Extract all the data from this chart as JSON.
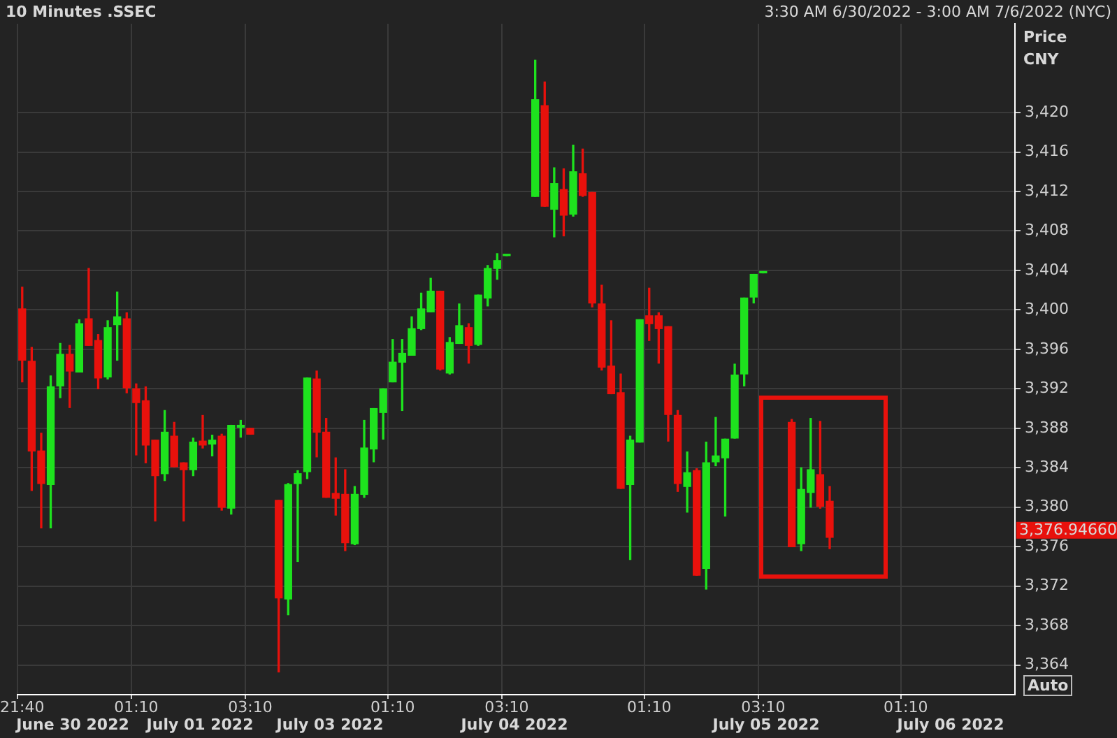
{
  "chart_data": {
    "type": "candlestick",
    "title": "10 Minutes .SSEC",
    "subtitle": "3:30 AM 6/30/2022 - 3:00 AM 7/6/2022 (NYC)",
    "ylabel": "Price CNY",
    "categories": [
      "21:40",
      null,
      null,
      null,
      null,
      null,
      null,
      null,
      null,
      null,
      null,
      null,
      "01:10",
      null,
      null,
      null,
      null,
      null,
      null,
      null,
      null,
      null,
      null,
      null,
      "03:10",
      null,
      null,
      null,
      null,
      null,
      null,
      null,
      null,
      null,
      null,
      null,
      null,
      null,
      null,
      "01:10",
      null,
      null,
      null,
      null,
      null,
      null,
      null,
      null,
      null,
      null,
      null,
      "03:10",
      null,
      null,
      null,
      null,
      null,
      null,
      null,
      null,
      null,
      null,
      null,
      null,
      null,
      null,
      "01:10",
      null,
      null,
      null,
      null,
      null,
      null,
      null,
      null,
      null,
      null,
      null,
      "03:10",
      null,
      null,
      null,
      null,
      null,
      null,
      null,
      null,
      null,
      null,
      null,
      null,
      null,
      null,
      "01:10",
      null,
      null,
      null,
      null,
      null,
      null,
      null,
      null,
      null,
      null,
      null
    ],
    "ohlc": [
      [
        3400.1,
        3402.3,
        3392.7,
        3394.9
      ],
      [
        3394.8,
        3396.2,
        3381.7,
        3385.7
      ],
      [
        3385.7,
        3387.5,
        3377.9,
        3382.4
      ],
      [
        3382.3,
        3393.3,
        3377.9,
        3392.2
      ],
      [
        3392.3,
        3396.6,
        3391.1,
        3395.5
      ],
      [
        3395.5,
        3396.4,
        3390.1,
        3393.8
      ],
      [
        3393.7,
        3399.0,
        3393.7,
        3398.6
      ],
      [
        3399.1,
        3404.2,
        3396.4,
        3396.4
      ],
      [
        3396.9,
        3397.5,
        3392.0,
        3393.1
      ],
      [
        3393.2,
        3398.9,
        3393.0,
        3398.2
      ],
      [
        3398.5,
        3401.8,
        3394.9,
        3399.3
      ],
      [
        3399.1,
        3399.7,
        3391.6,
        3392.1
      ],
      [
        3392.0,
        3392.5,
        3385.3,
        3390.6
      ],
      [
        3390.8,
        3392.2,
        3384.5,
        3386.3
      ],
      [
        3386.8,
        3386.8,
        3378.6,
        3383.2
      ],
      [
        3383.4,
        3389.8,
        3382.7,
        3387.6
      ],
      [
        3387.2,
        3388.6,
        3384.1,
        3384.1
      ],
      [
        3384.5,
        3384.5,
        3378.6,
        3383.8
      ],
      [
        3383.8,
        3387.0,
        3383.2,
        3386.6
      ],
      [
        3386.7,
        3389.3,
        3386.0,
        3386.3
      ],
      [
        3386.4,
        3387.3,
        3385.2,
        3386.8
      ],
      [
        3387.2,
        3387.4,
        3379.7,
        3380.0
      ],
      [
        3379.9,
        3388.3,
        3379.3,
        3388.3
      ],
      [
        3388.1,
        3388.8,
        3387.1,
        3388.3
      ],
      [
        3388.0,
        3388.0,
        3387.4,
        3387.4
      ],
      null,
      null,
      [
        3380.7,
        3380.7,
        3363.3,
        3370.8
      ],
      [
        3370.7,
        3382.4,
        3369.1,
        3382.3
      ],
      [
        3382.4,
        3383.7,
        3374.5,
        3383.4
      ],
      [
        3383.6,
        3393.1,
        3382.9,
        3393.1
      ],
      [
        3393.0,
        3393.8,
        3385.1,
        3387.6
      ],
      [
        3387.6,
        3389.0,
        3381.0,
        3381.0
      ],
      [
        3381.4,
        3385.0,
        3379.2,
        3380.9
      ],
      [
        3381.3,
        3383.8,
        3375.6,
        3376.4
      ],
      [
        3376.3,
        3382.1,
        3376.2,
        3381.3
      ],
      [
        3381.3,
        3388.8,
        3381.0,
        3386.0
      ],
      [
        3385.9,
        3390.0,
        3384.6,
        3390.0
      ],
      [
        3389.6,
        3392.0,
        3386.9,
        3392.0
      ],
      [
        3392.7,
        3397.0,
        3392.7,
        3394.7
      ],
      [
        3394.7,
        3397.0,
        3389.8,
        3395.6
      ],
      [
        3395.4,
        3399.3,
        3395.4,
        3398.1
      ],
      [
        3398.1,
        3401.7,
        3398.0,
        3400.1
      ],
      [
        3399.8,
        3403.2,
        3399.8,
        3401.9
      ],
      [
        3401.9,
        3401.9,
        3393.9,
        3394.0
      ],
      [
        3393.6,
        3397.2,
        3393.5,
        3396.7
      ],
      [
        3396.6,
        3400.6,
        3396.6,
        3398.4
      ],
      [
        3398.2,
        3398.6,
        3394.6,
        3396.4
      ],
      [
        3396.5,
        3401.5,
        3396.4,
        3401.5
      ],
      [
        3401.2,
        3404.5,
        3400.4,
        3404.2
      ],
      [
        3404.2,
        3405.7,
        3403.1,
        3405.0
      ],
      [
        3405.5,
        3405.5,
        3405.5,
        3405.5
      ],
      null,
      null,
      [
        3411.5,
        3425.3,
        3411.5,
        3421.3
      ],
      [
        3420.7,
        3423.1,
        3410.5,
        3410.5
      ],
      [
        3410.2,
        3414.4,
        3407.4,
        3412.8
      ],
      [
        3412.2,
        3414.3,
        3407.5,
        3409.6
      ],
      [
        3409.7,
        3416.7,
        3409.5,
        3414.0
      ],
      [
        3413.8,
        3416.3,
        3411.5,
        3411.6
      ],
      [
        3411.9,
        3411.9,
        3400.3,
        3400.7
      ],
      [
        3400.6,
        3402.5,
        3393.9,
        3394.2
      ],
      [
        3394.3,
        3398.9,
        3391.5,
        3391.5
      ],
      [
        3391.6,
        3393.5,
        3381.9,
        3381.9
      ],
      [
        3382.3,
        3387.2,
        3374.7,
        3386.8
      ],
      [
        3386.6,
        3399.0,
        3386.6,
        3399.0
      ],
      [
        3399.4,
        3402.2,
        3396.9,
        3398.6
      ],
      [
        3399.4,
        3399.7,
        3394.6,
        3398.1
      ],
      [
        3398.3,
        3398.3,
        3386.7,
        3389.4
      ],
      [
        3389.3,
        3389.8,
        3381.6,
        3382.4
      ],
      [
        3382.1,
        3385.6,
        3379.5,
        3383.5
      ],
      [
        3383.7,
        3383.9,
        3373.1,
        3373.1
      ],
      [
        3373.8,
        3386.6,
        3371.7,
        3384.5
      ],
      [
        3384.6,
        3389.1,
        3384.2,
        3385.2
      ],
      [
        3385.0,
        3386.9,
        3379.1,
        3386.9
      ],
      [
        3387.0,
        3394.5,
        3387.0,
        3393.4
      ],
      [
        3393.5,
        3401.2,
        3392.3,
        3401.2
      ],
      [
        3401.3,
        3403.6,
        3400.7,
        3403.6
      ],
      [
        3403.75,
        3403.75,
        3403.75,
        3403.75
      ],
      null,
      null,
      [
        3388.6,
        3388.9,
        3376.0,
        3376.0
      ],
      [
        3376.3,
        3384.0,
        3375.6,
        3381.8
      ],
      [
        3381.5,
        3389.0,
        3380.0,
        3383.8
      ],
      [
        3383.3,
        3388.7,
        3379.9,
        3380.1
      ],
      [
        3380.6,
        3382.1,
        3375.8,
        3376.9466
      ],
      null,
      null,
      null,
      null,
      null,
      null,
      null,
      null,
      null,
      null,
      null,
      null,
      null,
      null,
      null,
      null,
      null,
      null,
      null
    ],
    "colors": [
      "#e8110c",
      "#e8110c",
      "#e8110c",
      "#1ee21e",
      "#1ee21e",
      "#e8110c",
      "#1ee21e",
      "#e8110c",
      "#e8110c",
      "#1ee21e",
      "#1ee21e",
      "#e8110c",
      "#e8110c",
      "#e8110c",
      "#e8110c",
      "#1ee21e",
      "#e8110c",
      "#e8110c",
      "#1ee21e",
      "#e8110c",
      "#1ee21e",
      "#e8110c",
      "#1ee21e",
      "#1ee21e",
      "#e8110c",
      null,
      null,
      "#e8110c",
      "#1ee21e",
      "#1ee21e",
      "#1ee21e",
      "#e8110c",
      "#e8110c",
      "#e8110c",
      "#e8110c",
      "#1ee21e",
      "#1ee21e",
      "#1ee21e",
      "#1ee21e",
      "#1ee21e",
      "#1ee21e",
      "#1ee21e",
      "#1ee21e",
      "#1ee21e",
      "#e8110c",
      "#1ee21e",
      "#1ee21e",
      "#e8110c",
      "#1ee21e",
      "#1ee21e",
      "#1ee21e",
      "#1ee21e",
      null,
      null,
      "#1ee21e",
      "#e8110c",
      "#1ee21e",
      "#e8110c",
      "#1ee21e",
      "#e8110c",
      "#e8110c",
      "#e8110c",
      "#e8110c",
      "#e8110c",
      "#1ee21e",
      "#1ee21e",
      "#e8110c",
      "#e8110c",
      "#e8110c",
      "#e8110c",
      "#1ee21e",
      "#e8110c",
      "#1ee21e",
      "#1ee21e",
      "#1ee21e",
      "#1ee21e",
      "#1ee21e",
      "#1ee21e",
      "#1ee21e",
      null,
      null,
      "#e8110c",
      "#1ee21e",
      "#1ee21e",
      "#e8110c",
      "#e8110c",
      null,
      null,
      null,
      null,
      null,
      null,
      null,
      null,
      null,
      null,
      null,
      null,
      null,
      null,
      null,
      null,
      null,
      null,
      null
    ],
    "ylim": [
      3361,
      3429
    ],
    "yticks": [
      {
        "value": 3364,
        "label": "3,364"
      },
      {
        "value": 3368,
        "label": "3,368"
      },
      {
        "value": 3372,
        "label": "3,372"
      },
      {
        "value": 3376,
        "label": "3,376"
      },
      {
        "value": 3380,
        "label": "3,380"
      },
      {
        "value": 3384,
        "label": "3,384"
      },
      {
        "value": 3388,
        "label": "3,388"
      },
      {
        "value": 3392,
        "label": "3,392"
      },
      {
        "value": 3396,
        "label": "3,396"
      },
      {
        "value": 3400,
        "label": "3,400"
      },
      {
        "value": 3404,
        "label": "3,404"
      },
      {
        "value": 3408,
        "label": "3,408"
      },
      {
        "value": 3412,
        "label": "3,412"
      },
      {
        "value": 3416,
        "label": "3,416"
      },
      {
        "value": 3420,
        "label": "3,420"
      }
    ],
    "grid": true,
    "annotations": [
      "3,376.94660",
      "June 30 2022",
      "July 01 2022",
      "July 03 2022",
      "July 04 2022",
      "July 05 2022",
      "July 06 2022",
      "Auto"
    ]
  }
}
